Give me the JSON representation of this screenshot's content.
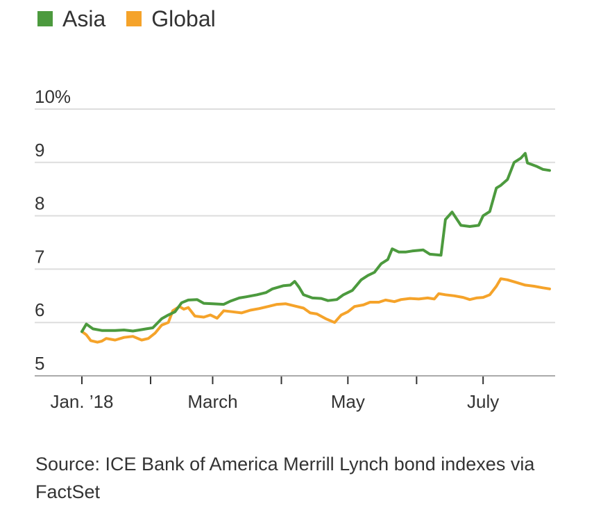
{
  "legend": [
    {
      "label": "Asia",
      "color": "#4c9a3e"
    },
    {
      "label": "Global",
      "color": "#f5a32a"
    }
  ],
  "source": "Source: ICE Bank of America Merrill Lynch bond indexes via FactSet",
  "chart_data": {
    "type": "line",
    "title": "",
    "xlabel": "",
    "ylabel": "",
    "ylim": [
      5,
      10
    ],
    "xlim": [
      "2018-01-01",
      "2018-07-31"
    ],
    "yticks": [
      {
        "value": 10,
        "label": "10%"
      },
      {
        "value": 9,
        "label": "9"
      },
      {
        "value": 8,
        "label": "8"
      },
      {
        "value": 7,
        "label": "7"
      },
      {
        "value": 6,
        "label": "6"
      },
      {
        "value": 5,
        "label": "5"
      }
    ],
    "xticks": [
      {
        "date": "2018-01-01",
        "label": "Jan. ’18"
      },
      {
        "date": "2018-02-01",
        "label": ""
      },
      {
        "date": "2018-03-01",
        "label": "March"
      },
      {
        "date": "2018-04-01",
        "label": ""
      },
      {
        "date": "2018-05-01",
        "label": "May"
      },
      {
        "date": "2018-06-01",
        "label": ""
      },
      {
        "date": "2018-07-01",
        "label": "July"
      }
    ],
    "grid": true,
    "legend_position": "top-left",
    "series": [
      {
        "name": "Asia",
        "color": "#4c9a3e",
        "points": [
          [
            "2018-01-01",
            5.83
          ],
          [
            "2018-01-03",
            5.97
          ],
          [
            "2018-01-06",
            5.88
          ],
          [
            "2018-01-10",
            5.85
          ],
          [
            "2018-01-16",
            5.85
          ],
          [
            "2018-01-20",
            5.86
          ],
          [
            "2018-01-24",
            5.84
          ],
          [
            "2018-01-27",
            5.86
          ],
          [
            "2018-01-30",
            5.88
          ],
          [
            "2018-02-02",
            5.9
          ],
          [
            "2018-02-06",
            6.07
          ],
          [
            "2018-02-09",
            6.14
          ],
          [
            "2018-02-12",
            6.2
          ],
          [
            "2018-02-15",
            6.37
          ],
          [
            "2018-02-18",
            6.42
          ],
          [
            "2018-02-22",
            6.43
          ],
          [
            "2018-02-25",
            6.36
          ],
          [
            "2018-03-01",
            6.35
          ],
          [
            "2018-03-06",
            6.34
          ],
          [
            "2018-03-09",
            6.4
          ],
          [
            "2018-03-13",
            6.46
          ],
          [
            "2018-03-16",
            6.48
          ],
          [
            "2018-03-21",
            6.52
          ],
          [
            "2018-03-25",
            6.56
          ],
          [
            "2018-03-28",
            6.63
          ],
          [
            "2018-04-02",
            6.69
          ],
          [
            "2018-04-05",
            6.7
          ],
          [
            "2018-04-07",
            6.77
          ],
          [
            "2018-04-09",
            6.66
          ],
          [
            "2018-04-11",
            6.52
          ],
          [
            "2018-04-15",
            6.46
          ],
          [
            "2018-04-19",
            6.45
          ],
          [
            "2018-04-22",
            6.41
          ],
          [
            "2018-04-26",
            6.43
          ],
          [
            "2018-04-29",
            6.52
          ],
          [
            "2018-05-03",
            6.6
          ],
          [
            "2018-05-07",
            6.8
          ],
          [
            "2018-05-10",
            6.88
          ],
          [
            "2018-05-13",
            6.94
          ],
          [
            "2018-05-16",
            7.1
          ],
          [
            "2018-05-19",
            7.18
          ],
          [
            "2018-05-21",
            7.38
          ],
          [
            "2018-05-24",
            7.32
          ],
          [
            "2018-05-27",
            7.32
          ],
          [
            "2018-05-30",
            7.34
          ],
          [
            "2018-06-04",
            7.36
          ],
          [
            "2018-06-07",
            7.28
          ],
          [
            "2018-06-10",
            7.27
          ],
          [
            "2018-06-12",
            7.26
          ],
          [
            "2018-06-14",
            7.93
          ],
          [
            "2018-06-17",
            8.07
          ],
          [
            "2018-06-21",
            7.82
          ],
          [
            "2018-06-25",
            7.8
          ],
          [
            "2018-06-29",
            7.82
          ],
          [
            "2018-07-01",
            8.0
          ],
          [
            "2018-07-04",
            8.08
          ],
          [
            "2018-07-07",
            8.52
          ],
          [
            "2018-07-09",
            8.57
          ],
          [
            "2018-07-12",
            8.68
          ],
          [
            "2018-07-15",
            9.0
          ],
          [
            "2018-07-18",
            9.08
          ],
          [
            "2018-07-20",
            9.17
          ],
          [
            "2018-07-21",
            8.99
          ],
          [
            "2018-07-25",
            8.93
          ],
          [
            "2018-07-28",
            8.87
          ],
          [
            "2018-07-31",
            8.85
          ]
        ]
      },
      {
        "name": "Global",
        "color": "#f5a32a",
        "points": [
          [
            "2018-01-01",
            5.83
          ],
          [
            "2018-01-03",
            5.77
          ],
          [
            "2018-01-05",
            5.66
          ],
          [
            "2018-01-08",
            5.63
          ],
          [
            "2018-01-10",
            5.65
          ],
          [
            "2018-01-12",
            5.7
          ],
          [
            "2018-01-16",
            5.67
          ],
          [
            "2018-01-20",
            5.72
          ],
          [
            "2018-01-24",
            5.74
          ],
          [
            "2018-01-28",
            5.67
          ],
          [
            "2018-01-31",
            5.7
          ],
          [
            "2018-02-03",
            5.8
          ],
          [
            "2018-02-06",
            5.95
          ],
          [
            "2018-02-09",
            6.0
          ],
          [
            "2018-02-11",
            6.22
          ],
          [
            "2018-02-14",
            6.3
          ],
          [
            "2018-02-16",
            6.25
          ],
          [
            "2018-02-18",
            6.28
          ],
          [
            "2018-02-21",
            6.12
          ],
          [
            "2018-02-25",
            6.1
          ],
          [
            "2018-02-28",
            6.14
          ],
          [
            "2018-03-03",
            6.08
          ],
          [
            "2018-03-06",
            6.22
          ],
          [
            "2018-03-10",
            6.2
          ],
          [
            "2018-03-14",
            6.18
          ],
          [
            "2018-03-18",
            6.23
          ],
          [
            "2018-03-22",
            6.26
          ],
          [
            "2018-03-26",
            6.3
          ],
          [
            "2018-03-30",
            6.34
          ],
          [
            "2018-04-03",
            6.35
          ],
          [
            "2018-04-07",
            6.31
          ],
          [
            "2018-04-11",
            6.27
          ],
          [
            "2018-04-14",
            6.18
          ],
          [
            "2018-04-17",
            6.16
          ],
          [
            "2018-04-21",
            6.07
          ],
          [
            "2018-04-25",
            6.0
          ],
          [
            "2018-04-28",
            6.14
          ],
          [
            "2018-05-01",
            6.2
          ],
          [
            "2018-05-04",
            6.3
          ],
          [
            "2018-05-08",
            6.33
          ],
          [
            "2018-05-11",
            6.38
          ],
          [
            "2018-05-15",
            6.38
          ],
          [
            "2018-05-18",
            6.42
          ],
          [
            "2018-05-22",
            6.39
          ],
          [
            "2018-05-25",
            6.43
          ],
          [
            "2018-05-29",
            6.45
          ],
          [
            "2018-06-02",
            6.44
          ],
          [
            "2018-06-06",
            6.46
          ],
          [
            "2018-06-09",
            6.44
          ],
          [
            "2018-06-11",
            6.54
          ],
          [
            "2018-06-14",
            6.52
          ],
          [
            "2018-06-18",
            6.5
          ],
          [
            "2018-06-22",
            6.47
          ],
          [
            "2018-06-25",
            6.43
          ],
          [
            "2018-06-28",
            6.46
          ],
          [
            "2018-07-01",
            6.47
          ],
          [
            "2018-07-04",
            6.52
          ],
          [
            "2018-07-07",
            6.68
          ],
          [
            "2018-07-09",
            6.82
          ],
          [
            "2018-07-12",
            6.8
          ],
          [
            "2018-07-16",
            6.75
          ],
          [
            "2018-07-20",
            6.7
          ],
          [
            "2018-07-24",
            6.68
          ],
          [
            "2018-07-28",
            6.65
          ],
          [
            "2018-07-31",
            6.63
          ]
        ]
      }
    ]
  }
}
